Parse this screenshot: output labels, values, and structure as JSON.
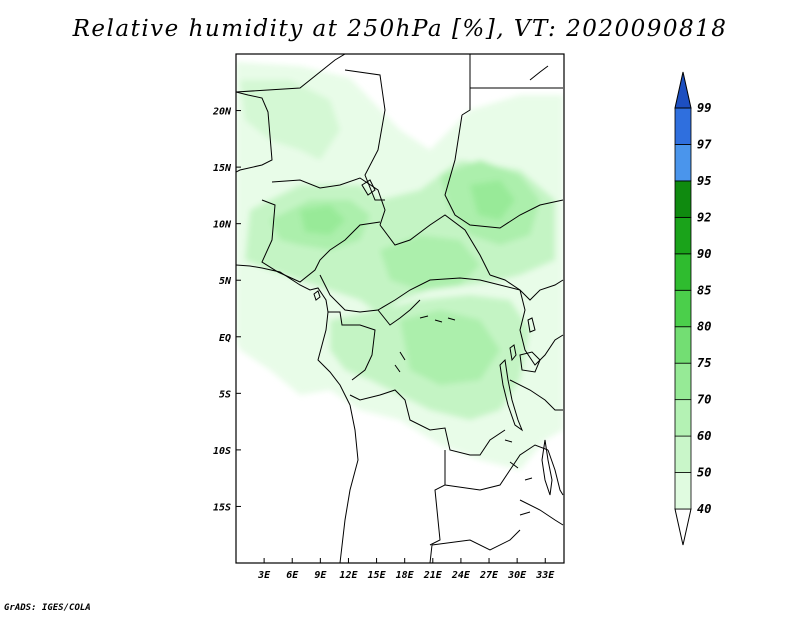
{
  "title": "Relative humidity at 250hPa [%], VT: 2020090818",
  "credit": "GrADS: IGES/COLA",
  "map": {
    "lon_ticks": [
      "3E",
      "6E",
      "9E",
      "12E",
      "15E",
      "18E",
      "21E",
      "24E",
      "27E",
      "30E",
      "33E"
    ],
    "lat_ticks": [
      "20N",
      "15N",
      "10N",
      "5N",
      "EQ",
      "5S",
      "10S",
      "15S"
    ],
    "lon_range": [
      0,
      35
    ],
    "lat_range": [
      -20,
      25
    ]
  },
  "colorbar": {
    "levels": [
      "40",
      "50",
      "60",
      "70",
      "75",
      "80",
      "85",
      "90",
      "92",
      "95",
      "97",
      "99"
    ],
    "colors": [
      "#f0fdf0",
      "#e0fbe0",
      "#c9f6c9",
      "#b4f2b4",
      "#96ea96",
      "#73de73",
      "#4bcf4b",
      "#2fbc2f",
      "#1aa31a",
      "#0f8a0f",
      "#4a95ec",
      "#2f6fde",
      "#1d4fc0"
    ]
  }
}
